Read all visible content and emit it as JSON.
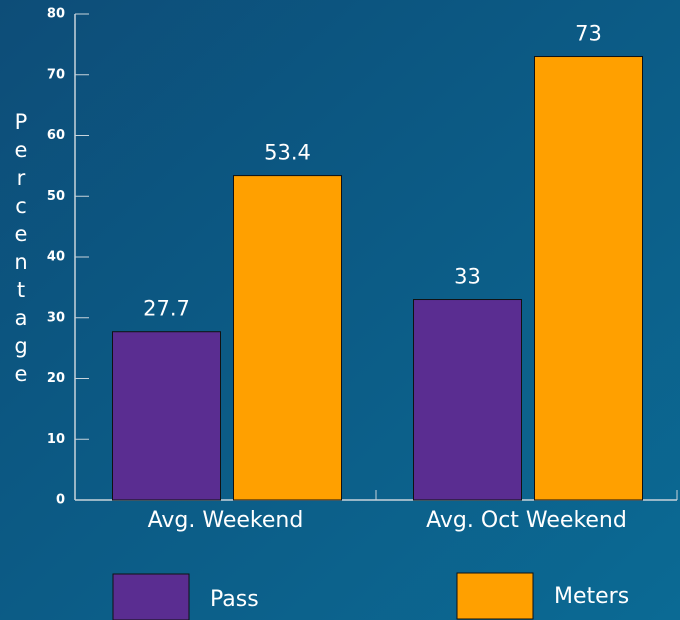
{
  "chart_data": {
    "type": "bar",
    "ylabel": "Percentage",
    "categories": [
      "Avg. Weekend",
      "Avg. Oct Weekend"
    ],
    "series": [
      {
        "name": "Pass",
        "color": "#5a2d91",
        "values": [
          27.7,
          33
        ]
      },
      {
        "name": "Meters",
        "color": "#ffa000",
        "values": [
          53.4,
          73
        ]
      }
    ],
    "ylim": [
      0,
      80
    ],
    "yticks": [
      0,
      10,
      20,
      30,
      40,
      50,
      60,
      70,
      80
    ]
  }
}
